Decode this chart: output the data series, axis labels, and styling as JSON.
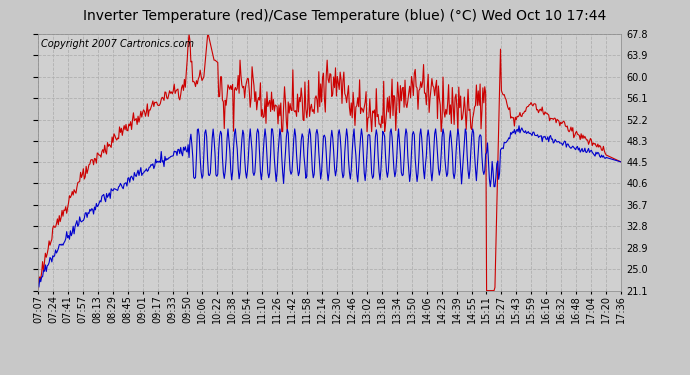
{
  "title": "Inverter Temperature (red)/Case Temperature (blue) (°C) Wed Oct 10 17:44",
  "copyright": "Copyright 2007 Cartronics.com",
  "background_color": "#c8c8c8",
  "plot_bg_color": "#d0d0d0",
  "grid_color": "#b0b0b0",
  "ylim": [
    21.1,
    67.8
  ],
  "yticks": [
    21.1,
    25.0,
    28.9,
    32.8,
    36.7,
    40.6,
    44.5,
    48.3,
    52.2,
    56.1,
    60.0,
    63.9,
    67.8
  ],
  "x_labels": [
    "07:07",
    "07:24",
    "07:41",
    "07:57",
    "08:13",
    "08:29",
    "08:45",
    "09:01",
    "09:17",
    "09:33",
    "09:50",
    "10:06",
    "10:22",
    "10:38",
    "10:54",
    "11:10",
    "11:26",
    "11:42",
    "11:58",
    "12:14",
    "12:30",
    "12:46",
    "13:02",
    "13:18",
    "13:34",
    "13:50",
    "14:06",
    "14:23",
    "14:39",
    "14:55",
    "15:11",
    "15:27",
    "15:43",
    "15:59",
    "16:16",
    "16:32",
    "16:48",
    "17:04",
    "17:20",
    "17:36"
  ],
  "red_color": "#cc0000",
  "blue_color": "#0000cc",
  "title_fontsize": 10,
  "copyright_fontsize": 7,
  "tick_fontsize": 7
}
